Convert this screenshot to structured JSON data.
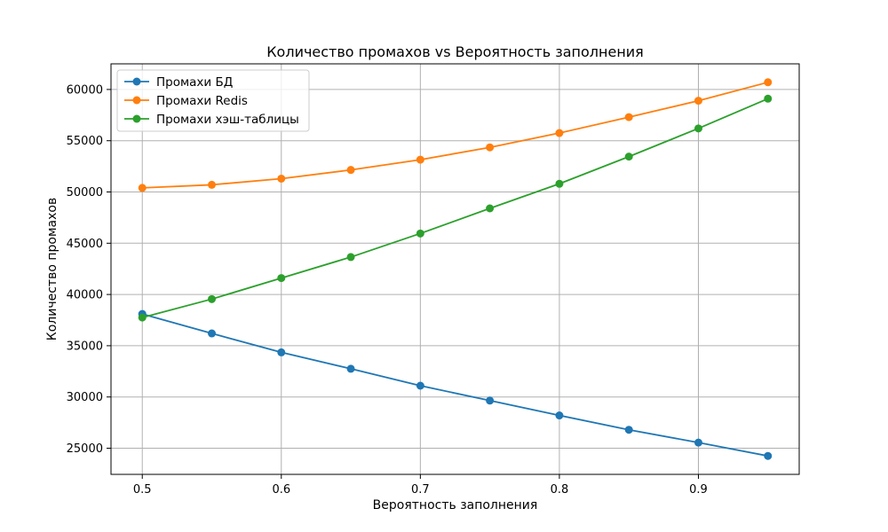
{
  "chart_data": {
    "type": "line",
    "title": "Количество промахов vs Вероятность заполнения",
    "xlabel": "Вероятность заполнения",
    "ylabel": "Количество промахов",
    "x": [
      0.5,
      0.55,
      0.6,
      0.65,
      0.7,
      0.75,
      0.8,
      0.85,
      0.9,
      0.95
    ],
    "xlim": [
      0.4775,
      0.9725
    ],
    "ylim": [
      22450,
      62500
    ],
    "x_ticks": [
      0.5,
      0.6,
      0.7,
      0.8,
      0.9
    ],
    "x_tick_labels": [
      "0.5",
      "0.6",
      "0.7",
      "0.8",
      "0.9"
    ],
    "y_ticks": [
      25000,
      30000,
      35000,
      40000,
      45000,
      50000,
      55000,
      60000
    ],
    "y_tick_labels": [
      "25000",
      "30000",
      "35000",
      "40000",
      "45000",
      "50000",
      "55000",
      "60000"
    ],
    "grid": true,
    "legend_position": "upper-left",
    "series": [
      {
        "name": "Промахи БД",
        "color": "#1f77b4",
        "marker": "circle",
        "values": [
          38100,
          36200,
          34350,
          32750,
          31100,
          29650,
          28200,
          26800,
          25550,
          24250
        ]
      },
      {
        "name": "Промахи Redis",
        "color": "#ff7f0e",
        "marker": "circle",
        "values": [
          50400,
          50700,
          51300,
          52150,
          53150,
          54350,
          55750,
          57300,
          58900,
          60700
        ]
      },
      {
        "name": "Промахи хэш-таблицы",
        "color": "#2ca02c",
        "marker": "circle",
        "values": [
          37750,
          39550,
          41600,
          43650,
          45950,
          48400,
          50800,
          53450,
          56200,
          59100
        ]
      }
    ]
  }
}
